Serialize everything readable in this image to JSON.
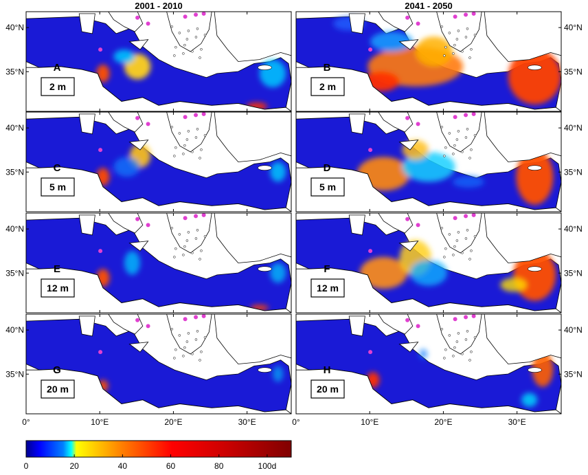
{
  "chart_data": {
    "type": "heatmap",
    "column_titles": [
      "2001 - 2010",
      "2041 - 2050"
    ],
    "x_ticks": [
      "0°",
      "10°E",
      "20°E",
      "30°E"
    ],
    "x_tick_values": [
      0,
      10,
      20,
      30
    ],
    "y_ticks": [
      "40°N",
      "35°N"
    ],
    "y_tick_values": [
      40,
      35
    ],
    "xlim": [
      0,
      36
    ],
    "ylim": [
      30.5,
      41.8
    ],
    "colorbar": {
      "ticks": [
        "0",
        "20",
        "40",
        "60",
        "80",
        "100d"
      ],
      "tick_values": [
        0,
        20,
        40,
        60,
        80,
        100
      ],
      "range": [
        0,
        110
      ],
      "colormap": [
        "#00008f",
        "#0000ff",
        "#0080ff",
        "#00ffff",
        "#80ff80",
        "#ffff00",
        "#ff8000",
        "#ff0000",
        "#800000"
      ]
    },
    "panels": [
      {
        "label": "A",
        "depth": "2 m",
        "period": "2001 - 2010"
      },
      {
        "label": "B",
        "depth": "2 m",
        "period": "2041 - 2050"
      },
      {
        "label": "C",
        "depth": "5 m",
        "period": "2001 - 2010"
      },
      {
        "label": "D",
        "depth": "5 m",
        "period": "2041 - 2050"
      },
      {
        "label": "E",
        "depth": "12 m",
        "period": "2001 - 2010"
      },
      {
        "label": "F",
        "depth": "12 m",
        "period": "2041 - 2050"
      },
      {
        "label": "G",
        "depth": "20 m",
        "period": "2001 - 2010"
      },
      {
        "label": "H",
        "depth": "20 m",
        "period": "2041 - 2050"
      }
    ]
  },
  "colors": {
    "sea_base": "#1a1ad6",
    "land": "#ffffff",
    "marker": "#e040d0"
  }
}
